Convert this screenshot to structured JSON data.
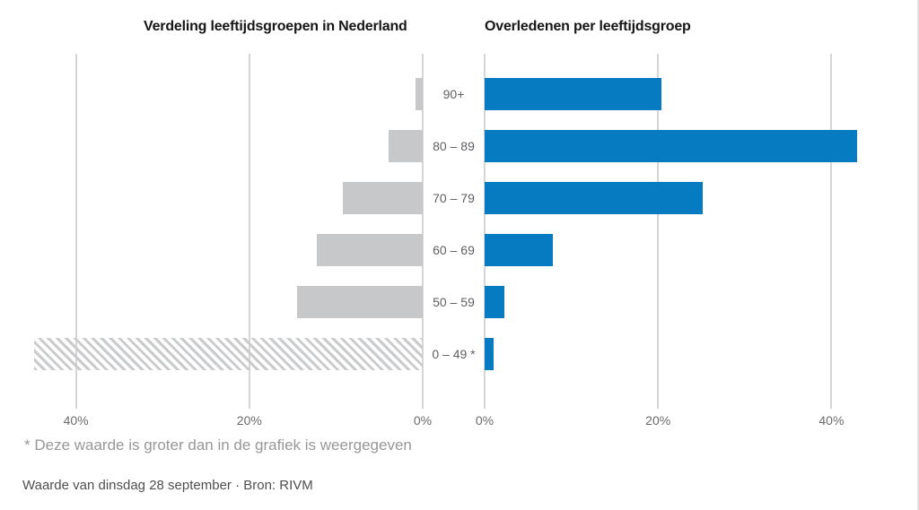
{
  "chart_data": [
    {
      "type": "bar",
      "orientation": "horizontal",
      "direction": "right-to-left",
      "title": "Verdeling leeftijdsgroepen in Nederland",
      "categories": [
        "90+",
        "80 – 89",
        "70 – 79",
        "60 – 69",
        "50 – 59",
        "0 – 49 *"
      ],
      "values": [
        0.8,
        3.9,
        9.2,
        12.2,
        14.5,
        44.8
      ],
      "truncated": [
        false,
        false,
        false,
        false,
        false,
        true
      ],
      "axis_ticks": [
        {
          "label": "40%",
          "pct": 40
        },
        {
          "label": "20%",
          "pct": 20
        },
        {
          "label": "0%",
          "pct": 0
        }
      ],
      "xlim": [
        0,
        44.8
      ],
      "bar_color": "#c6c8ca",
      "grid": true,
      "unit": "%"
    },
    {
      "type": "bar",
      "orientation": "horizontal",
      "direction": "left-to-right",
      "title": "Overledenen per leeftijdsgroep",
      "categories": [
        "90+",
        "80 – 89",
        "70 – 79",
        "60 – 69",
        "50 – 59",
        "0 – 49 *"
      ],
      "values": [
        20.4,
        43.0,
        25.2,
        7.9,
        2.3,
        1.0
      ],
      "truncated": [
        false,
        false,
        false,
        false,
        false,
        false
      ],
      "axis_ticks": [
        {
          "label": "0%",
          "pct": 0
        },
        {
          "label": "20%",
          "pct": 20
        },
        {
          "label": "40%",
          "pct": 40
        }
      ],
      "xlim": [
        0,
        50
      ],
      "bar_color": "#077bc2",
      "grid": true,
      "unit": "%"
    }
  ],
  "footnote": "* Deze waarde is groter dan in de grafiek is weergegeven",
  "source": "Waarde van dinsdag 28 september · Bron: RIVM",
  "colors": {
    "bar_blue": "#077bc2",
    "bar_gray": "#c6c8ca",
    "gridline": "#d6d6d6",
    "title_text": "#161616",
    "age_label_text": "#5e5f61",
    "tick_label_text": "#6b6b6b",
    "footnote_text": "#979797",
    "source_text": "#4f4f4f",
    "background": "#ffffff"
  }
}
